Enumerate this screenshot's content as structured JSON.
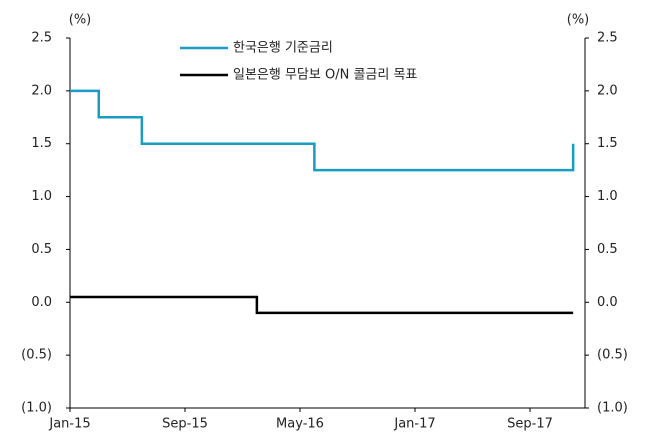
{
  "chart_data": {
    "type": "line",
    "step": true,
    "ylabel": "(%)",
    "y2label": "(%)",
    "categories": [
      "Jan-15",
      null,
      null,
      null,
      null,
      null,
      null,
      null,
      "Sep-15",
      null,
      null,
      null,
      null,
      null,
      null,
      null,
      "May-16",
      null,
      null,
      null,
      null,
      null,
      null,
      null,
      "Jan-17",
      null,
      null,
      null,
      null,
      null,
      null,
      null,
      "Sep-17",
      null,
      null,
      null
    ],
    "series": [
      {
        "name": "한국은행 기준금리",
        "color": "#1a9bc4",
        "values": [
          2.0,
          2.0,
          1.75,
          1.75,
          1.75,
          1.5,
          1.5,
          1.5,
          1.5,
          1.5,
          1.5,
          1.5,
          1.5,
          1.5,
          1.5,
          1.5,
          1.5,
          1.25,
          1.25,
          1.25,
          1.25,
          1.25,
          1.25,
          1.25,
          1.25,
          1.25,
          1.25,
          1.25,
          1.25,
          1.25,
          1.25,
          1.25,
          1.25,
          1.25,
          1.25,
          1.5
        ]
      },
      {
        "name": "일본은행 무담보 O/N 콜금리 목표",
        "color": "#000000",
        "values": [
          0.05,
          0.05,
          0.05,
          0.05,
          0.05,
          0.05,
          0.05,
          0.05,
          0.05,
          0.05,
          0.05,
          0.05,
          0.05,
          -0.1,
          -0.1,
          -0.1,
          -0.1,
          -0.1,
          -0.1,
          -0.1,
          -0.1,
          -0.1,
          -0.1,
          -0.1,
          -0.1,
          -0.1,
          -0.1,
          -0.1,
          -0.1,
          -0.1,
          -0.1,
          -0.1,
          -0.1,
          -0.1,
          -0.1,
          -0.1
        ]
      }
    ],
    "ylim": [
      -1.0,
      2.5
    ],
    "yticks": [
      2.5,
      {
        "value": 2,
        "label": "2.0"
      },
      1.5,
      {
        "value": 1,
        "label": "1.0"
      },
      0.5,
      {
        "value": 0,
        "label": "0.0"
      },
      {
        "value": -0.5,
        "label": "(0.5)"
      },
      {
        "value": -1,
        "label": "(1.0)"
      }
    ],
    "y2lim": [
      -1.0,
      2.5
    ],
    "y2ticks": [
      2.5,
      {
        "value": 2,
        "label": "2.0"
      },
      1.5,
      {
        "value": 1,
        "label": "1.0"
      },
      0.5,
      {
        "value": 0,
        "label": "0.0"
      },
      {
        "value": -0.5,
        "label": "(0.5)"
      },
      {
        "value": -1,
        "label": "(1.0)"
      }
    ],
    "legend": "top"
  }
}
